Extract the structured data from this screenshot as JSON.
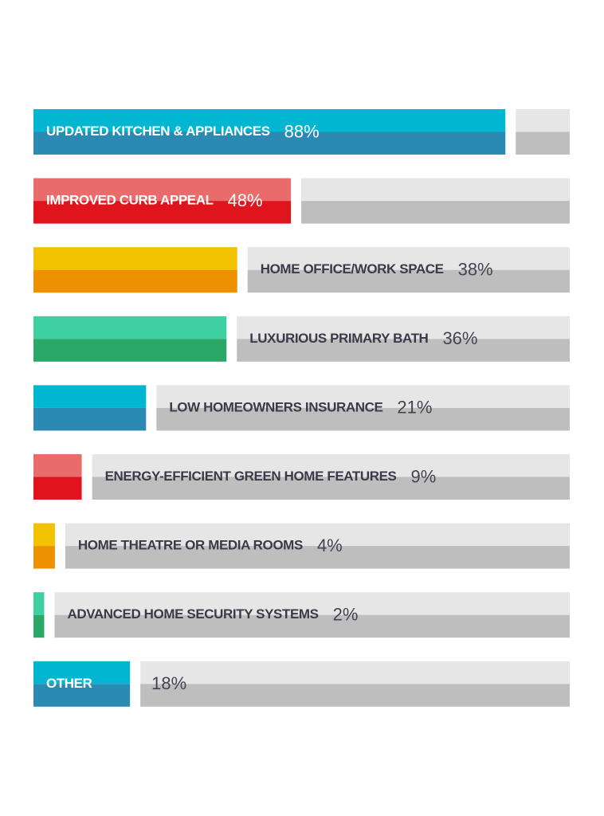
{
  "chart_data": {
    "type": "bar",
    "orientation": "horizontal",
    "categories": [
      "UPDATED KITCHEN & APPLIANCES",
      "IMPROVED CURB APPEAL",
      "HOME OFFICE/WORK SPACE",
      "LUXURIOUS PRIMARY BATH",
      "LOW HOMEOWNERS INSURANCE",
      "ENERGY-EFFICIENT GREEN HOME FEATURES",
      "HOME THEATRE OR MEDIA ROOMS",
      "ADVANCED HOME SECURITY SYSTEMS",
      "OTHER"
    ],
    "values": [
      88,
      48,
      38,
      36,
      21,
      9,
      4,
      2,
      18
    ],
    "value_labels": [
      "88%",
      "48%",
      "38%",
      "36%",
      "21%",
      "9%",
      "4%",
      "2%",
      "18%"
    ],
    "colors": [
      [
        "#00b6d1",
        "#2a8ab2"
      ],
      [
        "#ea6b6b",
        "#e0141c"
      ],
      [
        "#f2c100",
        "#ee9100"
      ],
      [
        "#3fd0a2",
        "#2ba868"
      ],
      [
        "#00b6d1",
        "#2a8ab2"
      ],
      [
        "#ea6b6b",
        "#e0141c"
      ],
      [
        "#f2c100",
        "#ee9100"
      ],
      [
        "#3fd0a2",
        "#2ba868"
      ],
      [
        "#00b6d1",
        "#2a8ab2"
      ]
    ],
    "track_colors": [
      "#e6e6e6",
      "#bebebe"
    ],
    "xlim": [
      0,
      100
    ]
  }
}
